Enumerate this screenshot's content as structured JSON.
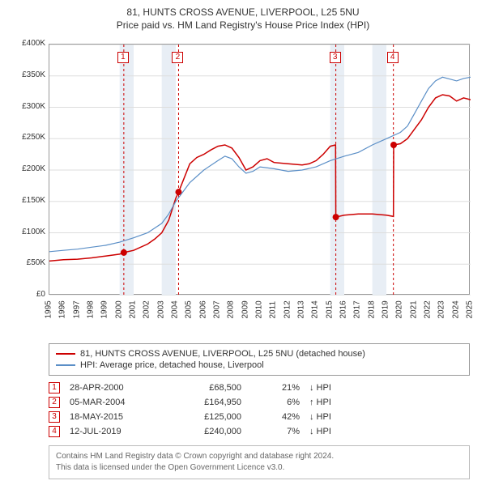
{
  "title": "81, HUNTS CROSS AVENUE, LIVERPOOL, L25 5NU",
  "subtitle": "Price paid vs. HM Land Registry's House Price Index (HPI)",
  "chart": {
    "type": "line",
    "background_color": "#ffffff",
    "grid_color": "#dddddd",
    "border_color": "#999999",
    "shaded_band_color": "#e8eef5",
    "ylim": [
      0,
      400000
    ],
    "ytick_step": 50000,
    "ytick_labels": [
      "£0",
      "£50K",
      "£100K",
      "£150K",
      "£200K",
      "£250K",
      "£300K",
      "£350K",
      "£400K"
    ],
    "xlim": [
      1995,
      2025
    ],
    "xtick_step": 1,
    "xtick_labels": [
      "1995",
      "1996",
      "1997",
      "1998",
      "1999",
      "2000",
      "2001",
      "2002",
      "2003",
      "2004",
      "2005",
      "2006",
      "2007",
      "2008",
      "2009",
      "2010",
      "2011",
      "2012",
      "2013",
      "2014",
      "2015",
      "2016",
      "2017",
      "2018",
      "2019",
      "2020",
      "2021",
      "2022",
      "2023",
      "2024",
      "2025"
    ],
    "shaded_bands": [
      [
        2000,
        2001
      ],
      [
        2003,
        2004
      ],
      [
        2015,
        2016
      ],
      [
        2018,
        2019
      ]
    ],
    "marker_lines": [
      {
        "x": 2000.3,
        "label": "1"
      },
      {
        "x": 2004.2,
        "label": "2"
      },
      {
        "x": 2015.4,
        "label": "3"
      },
      {
        "x": 2019.5,
        "label": "4"
      }
    ],
    "marker_line_color": "#cc0000",
    "marker_line_dash": "3,3",
    "series": [
      {
        "name": "81, HUNTS CROSS AVENUE, LIVERPOOL, L25 5NU (detached house)",
        "color": "#cc0000",
        "line_width": 1.5,
        "points": [
          [
            1995,
            55000
          ],
          [
            1996,
            57000
          ],
          [
            1997,
            58000
          ],
          [
            1998,
            60000
          ],
          [
            1999,
            63000
          ],
          [
            2000,
            66000
          ],
          [
            2000.3,
            68500
          ],
          [
            2001,
            72000
          ],
          [
            2002,
            82000
          ],
          [
            2002.5,
            90000
          ],
          [
            2003,
            100000
          ],
          [
            2003.5,
            120000
          ],
          [
            2004,
            155000
          ],
          [
            2004.2,
            164950
          ],
          [
            2005,
            210000
          ],
          [
            2005.5,
            220000
          ],
          [
            2006,
            225000
          ],
          [
            2006.5,
            232000
          ],
          [
            2007,
            238000
          ],
          [
            2007.5,
            240000
          ],
          [
            2008,
            235000
          ],
          [
            2008.5,
            220000
          ],
          [
            2009,
            200000
          ],
          [
            2009.5,
            205000
          ],
          [
            2010,
            215000
          ],
          [
            2010.5,
            218000
          ],
          [
            2011,
            212000
          ],
          [
            2012,
            210000
          ],
          [
            2013,
            208000
          ],
          [
            2013.5,
            210000
          ],
          [
            2014,
            215000
          ],
          [
            2014.5,
            225000
          ],
          [
            2015,
            238000
          ],
          [
            2015.38,
            240000
          ],
          [
            2015.4,
            125000
          ],
          [
            2016,
            128000
          ],
          [
            2017,
            130000
          ],
          [
            2018,
            130000
          ],
          [
            2019,
            128000
          ],
          [
            2019.5,
            126000
          ],
          [
            2019.52,
            240000
          ],
          [
            2020,
            242000
          ],
          [
            2020.5,
            250000
          ],
          [
            2021,
            265000
          ],
          [
            2021.5,
            280000
          ],
          [
            2022,
            300000
          ],
          [
            2022.5,
            315000
          ],
          [
            2023,
            320000
          ],
          [
            2023.5,
            318000
          ],
          [
            2024,
            310000
          ],
          [
            2024.5,
            315000
          ],
          [
            2025,
            312000
          ]
        ],
        "markers": [
          {
            "x": 2000.3,
            "y": 68500
          },
          {
            "x": 2004.2,
            "y": 164950
          },
          {
            "x": 2015.4,
            "y": 125000
          },
          {
            "x": 2019.52,
            "y": 240000
          }
        ]
      },
      {
        "name": "HPI: Average price, detached house, Liverpool",
        "color": "#5b8fc7",
        "line_width": 1.2,
        "points": [
          [
            1995,
            70000
          ],
          [
            1996,
            72000
          ],
          [
            1997,
            74000
          ],
          [
            1998,
            77000
          ],
          [
            1999,
            80000
          ],
          [
            2000,
            85000
          ],
          [
            2001,
            92000
          ],
          [
            2002,
            100000
          ],
          [
            2003,
            115000
          ],
          [
            2003.5,
            130000
          ],
          [
            2004,
            150000
          ],
          [
            2004.5,
            165000
          ],
          [
            2005,
            180000
          ],
          [
            2006,
            200000
          ],
          [
            2007,
            215000
          ],
          [
            2007.5,
            222000
          ],
          [
            2008,
            218000
          ],
          [
            2008.5,
            205000
          ],
          [
            2009,
            195000
          ],
          [
            2009.5,
            198000
          ],
          [
            2010,
            205000
          ],
          [
            2011,
            202000
          ],
          [
            2012,
            198000
          ],
          [
            2013,
            200000
          ],
          [
            2014,
            205000
          ],
          [
            2015,
            215000
          ],
          [
            2016,
            222000
          ],
          [
            2017,
            228000
          ],
          [
            2018,
            240000
          ],
          [
            2019,
            250000
          ],
          [
            2020,
            260000
          ],
          [
            2020.5,
            270000
          ],
          [
            2021,
            290000
          ],
          [
            2021.5,
            310000
          ],
          [
            2022,
            330000
          ],
          [
            2022.5,
            342000
          ],
          [
            2023,
            348000
          ],
          [
            2023.5,
            345000
          ],
          [
            2024,
            342000
          ],
          [
            2024.5,
            346000
          ],
          [
            2025,
            348000
          ]
        ]
      }
    ]
  },
  "legend": {
    "items": [
      {
        "color": "#cc0000",
        "label": "81, HUNTS CROSS AVENUE, LIVERPOOL, L25 5NU (detached house)"
      },
      {
        "color": "#5b8fc7",
        "label": "HPI: Average price, detached house, Liverpool"
      }
    ]
  },
  "transactions": [
    {
      "num": "1",
      "date": "28-APR-2000",
      "price": "£68,500",
      "pct": "21%",
      "dir": "↓ HPI"
    },
    {
      "num": "2",
      "date": "05-MAR-2004",
      "price": "£164,950",
      "pct": "6%",
      "dir": "↑ HPI"
    },
    {
      "num": "3",
      "date": "18-MAY-2015",
      "price": "£125,000",
      "pct": "42%",
      "dir": "↓ HPI"
    },
    {
      "num": "4",
      "date": "12-JUL-2019",
      "price": "£240,000",
      "pct": "7%",
      "dir": "↓ HPI"
    }
  ],
  "footer": {
    "line1": "Contains HM Land Registry data © Crown copyright and database right 2024.",
    "line2": "This data is licensed under the Open Government Licence v3.0."
  }
}
